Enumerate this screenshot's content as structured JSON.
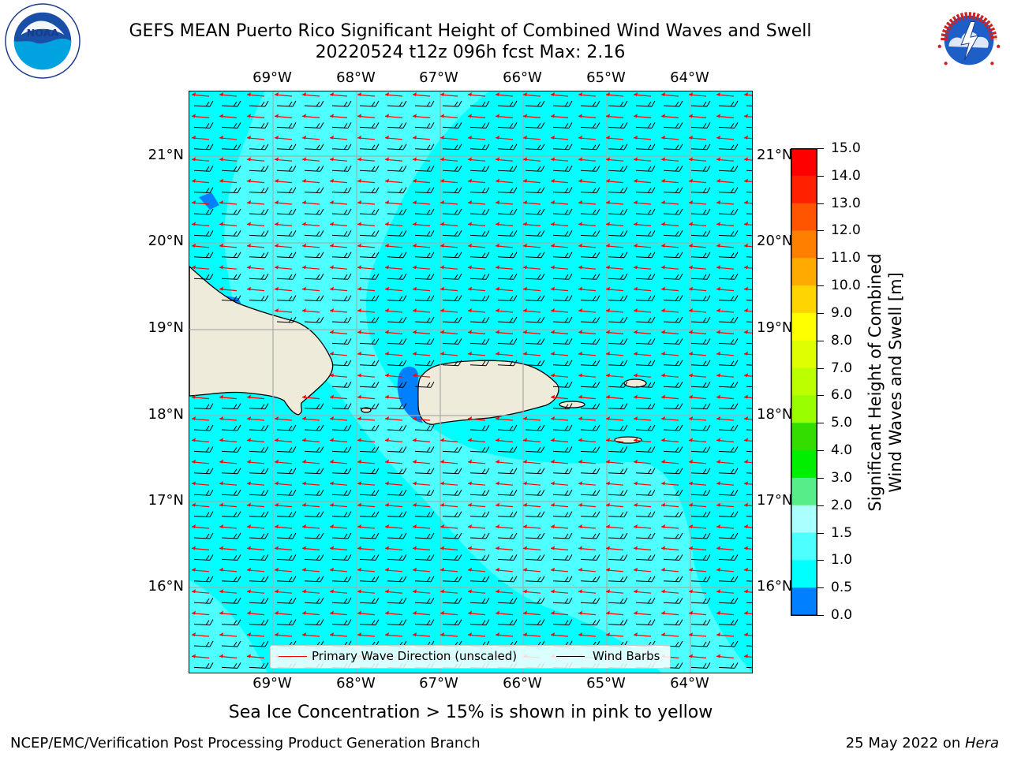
{
  "title_line1": "GEFS MEAN Puerto Rico Significant Height of Combined Wind Waves and Swell",
  "title_line2": "20220524 t12z 096h fcst   Max: 2.16",
  "map": {
    "lon_labels": [
      "69°W",
      "68°W",
      "67°W",
      "66°W",
      "65°W",
      "64°W"
    ],
    "lat_labels": [
      "21°N",
      "20°N",
      "19°N",
      "18°N",
      "17°N",
      "16°N"
    ],
    "land_color": "#eeebdb",
    "ocean_color": "#00ffff",
    "high_wave_color": "#4dffff",
    "low_wave_color": "#0080ff",
    "wave_direction_color": "#ff0000"
  },
  "legend": {
    "wave_direction": "Primary Wave Direction (unscaled)",
    "wind_barbs": "Wind Barbs"
  },
  "colorbar": {
    "title_line1": "Significant Height of Combined",
    "title_line2": "Wind Waves and Swell [m]",
    "ticks": [
      "15.0",
      "14.0",
      "13.0",
      "12.0",
      "11.0",
      "10.0",
      "9.0",
      "8.0",
      "7.0",
      "6.0",
      "5.0",
      "4.0",
      "3.0",
      "2.0",
      "1.5",
      "1.0",
      "0.5",
      "0.0"
    ],
    "colors": [
      "#ff0000",
      "#ff2000",
      "#ff5500",
      "#ff8000",
      "#ffaa00",
      "#ffd500",
      "#ffff00",
      "#ddff00",
      "#bbff00",
      "#99ff00",
      "#33dd00",
      "#00ee00",
      "#55ee88",
      "#aaffff",
      "#4dffff",
      "#00ffff",
      "#0080ff",
      "#0000ff"
    ]
  },
  "caption": "Sea Ice Concentration > 15% is shown in pink to yellow",
  "footer_left": "NCEP/EMC/Verification Post Processing Product Generation Branch",
  "footer_right_date": "25 May 2022 on ",
  "footer_right_host": "Hera",
  "logos": {
    "noaa_text": "NOAA",
    "nws_text": "NATIONAL WEATHER SERVICE"
  }
}
